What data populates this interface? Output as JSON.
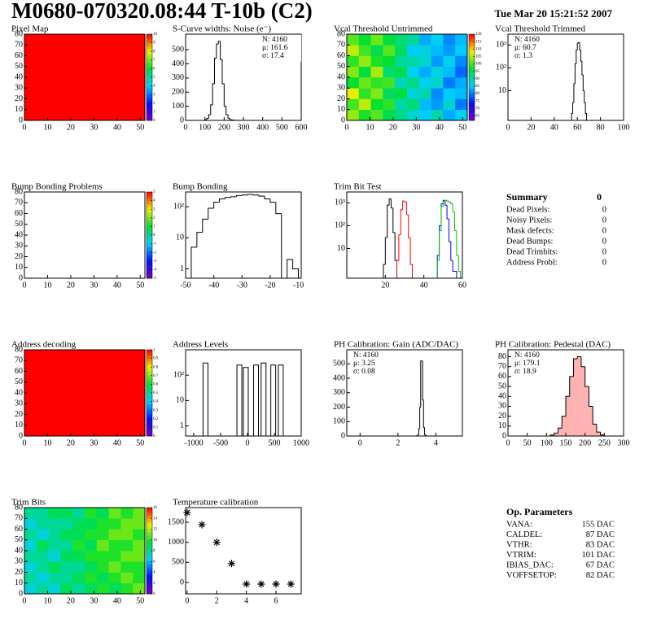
{
  "header": {
    "title": "M0680-070320.08:44 T-10b (C2)",
    "date": "Tue Mar 20 15:21:52 2007"
  },
  "chart_data": [
    {
      "type": "heatmap",
      "title": "Pixel Map",
      "xlim": [
        0,
        52
      ],
      "xticks": [
        0,
        10,
        20,
        30,
        40,
        50
      ],
      "ylim": [
        0,
        80
      ],
      "yticks": [
        0,
        10,
        20,
        30,
        40,
        50,
        60,
        70,
        80
      ],
      "zlim": [
        0,
        10
      ],
      "zticks": [
        0,
        1,
        2,
        3,
        4,
        5,
        6,
        7,
        8,
        9,
        10
      ],
      "z": [
        [
          10
        ]
      ]
    },
    {
      "type": "histogram",
      "title": "S-Curve widths: Noise (e⁻)",
      "xlim": [
        0,
        600
      ],
      "xticks": [
        0,
        100,
        200,
        300,
        400,
        500,
        600
      ],
      "ylim": [
        0,
        610
      ],
      "yticks": [
        0,
        100,
        200,
        300,
        400,
        500
      ],
      "log_y": false,
      "stats_position": "top-right",
      "stats": [
        {
          "text": "N: 4160",
          "color": "#000000"
        },
        {
          "text": "μ: 161.6",
          "color": "#000000"
        },
        {
          "text": "σ: 17.4",
          "color": "#000000"
        }
      ],
      "series": [
        {
          "color": "#000000",
          "bins": [
            100,
            110,
            120,
            130,
            140,
            150,
            160,
            170,
            180,
            190,
            200,
            210,
            220,
            230,
            240,
            250,
            260,
            270
          ],
          "counts": [
            5,
            15,
            40,
            110,
            260,
            440,
            540,
            560,
            430,
            260,
            100,
            40,
            15,
            5,
            3,
            1,
            1
          ]
        }
      ]
    },
    {
      "type": "heatmap",
      "title": "Vcal Threshold Untrimmed",
      "xlim": [
        0,
        52
      ],
      "xticks": [
        0,
        10,
        20,
        30,
        40,
        50
      ],
      "ylim": [
        0,
        80
      ],
      "yticks": [
        0,
        10,
        20,
        30,
        40,
        50,
        60,
        70,
        80
      ],
      "zlim": [
        62,
        120
      ],
      "zticks": [
        65,
        70,
        75,
        80,
        85,
        90,
        95,
        100,
        105,
        110,
        115,
        120
      ],
      "z": [
        [
          104,
          98,
          101,
          95,
          92,
          88,
          85,
          90,
          83,
          86
        ],
        [
          100,
          106,
          97,
          99,
          90,
          93,
          84,
          82,
          88,
          80
        ],
        [
          108,
          99,
          103,
          94,
          96,
          87,
          90,
          81,
          85,
          84
        ],
        [
          97,
          102,
          99,
          100,
          89,
          92,
          86,
          88,
          80,
          83
        ],
        [
          103,
          96,
          105,
          93,
          95,
          86,
          83,
          87,
          84,
          79
        ],
        [
          99,
          104,
          98,
          97,
          91,
          90,
          88,
          82,
          86,
          81
        ],
        [
          106,
          100,
          95,
          101,
          94,
          85,
          87,
          84,
          82,
          85
        ],
        [
          101,
          97,
          102,
          96,
          93,
          91,
          83,
          86,
          81,
          84
        ]
      ]
    },
    {
      "type": "histogram",
      "title": "Vcal Threshold Trimmed",
      "xlim": [
        0,
        100
      ],
      "xticks": [
        0,
        20,
        40,
        60,
        80,
        100
      ],
      "ylim": [
        0.5,
        3000
      ],
      "yticks": [
        10,
        {
          "value": 100,
          "label": "10²"
        },
        {
          "value": 1000,
          "label": "10³"
        }
      ],
      "log_y": true,
      "stats_position": "top-left",
      "stats": [
        {
          "text": "N: 4160",
          "color": "#000000"
        },
        {
          "text": "μ: 60.7",
          "color": "#000000"
        },
        {
          "text": "σ:  1.3",
          "color": "#000000"
        }
      ],
      "series": [
        {
          "color": "#000000",
          "bins": [
            55,
            56,
            57,
            58,
            59,
            60,
            61,
            62,
            63,
            64,
            65,
            66,
            67,
            68
          ],
          "counts": [
            1,
            3,
            20,
            150,
            600,
            1200,
            1300,
            600,
            200,
            50,
            10,
            3,
            1
          ]
        }
      ]
    },
    {
      "type": "heatmap",
      "title": "Bump Bonding Problems",
      "xlim": [
        0,
        52
      ],
      "xticks": [
        0,
        10,
        20,
        30,
        40,
        50
      ],
      "ylim": [
        0,
        80
      ],
      "yticks": [
        0,
        10,
        20,
        30,
        40,
        50,
        60,
        70,
        80
      ],
      "zlim": [
        -5,
        5
      ],
      "zticks": [
        -5,
        -4,
        -3,
        -2,
        -1,
        0,
        1,
        2,
        3,
        4,
        5
      ],
      "z": []
    },
    {
      "type": "histogram",
      "title": "Bump Bonding",
      "xlim": [
        -50,
        -9
      ],
      "xticks": [
        -50,
        -40,
        -30,
        -20,
        -10
      ],
      "ylim": [
        0.5,
        300
      ],
      "yticks": [
        1,
        10,
        {
          "value": 100,
          "label": "10²"
        }
      ],
      "log_y": true,
      "series": [
        {
          "color": "#000000",
          "bins": [
            -48,
            -46,
            -44,
            -42,
            -40,
            -38,
            -36,
            -34,
            -32,
            -30,
            -28,
            -26,
            -24,
            -22,
            -20,
            -18,
            -16,
            -14,
            -12,
            -10
          ],
          "counts": [
            5,
            15,
            40,
            90,
            140,
            180,
            200,
            210,
            230,
            240,
            250,
            240,
            220,
            180,
            140,
            60,
            0,
            2,
            1
          ]
        }
      ]
    },
    {
      "type": "histogram",
      "title": "Trim Bit Test",
      "xlim": [
        0,
        60
      ],
      "xticks": [
        20,
        40,
        60
      ],
      "ylim": [
        0.5,
        3000
      ],
      "yticks": [
        10,
        {
          "value": 100,
          "label": "10²"
        },
        {
          "value": 1000,
          "label": "10³"
        }
      ],
      "log_y": true,
      "series": [
        {
          "color": "#000000",
          "bins": [
            19,
            20,
            21,
            22,
            23,
            24,
            25,
            26
          ],
          "counts": [
            2,
            30,
            800,
            1500,
            600,
            50,
            3
          ]
        },
        {
          "color": "#ff0000",
          "bins": [
            26,
            27,
            28,
            29,
            30,
            31,
            32,
            33,
            34
          ],
          "counts": [
            3,
            40,
            500,
            1200,
            1100,
            300,
            30,
            2
          ]
        },
        {
          "color": "#0000ff",
          "bins": [
            47,
            48,
            49,
            50,
            51,
            52,
            53,
            54,
            55,
            56,
            57
          ],
          "counts": [
            5,
            100,
            900,
            1300,
            800,
            200,
            20,
            3,
            1,
            1
          ]
        },
        {
          "color": "#00c000",
          "bins": [
            47,
            48,
            49,
            50,
            51,
            52,
            53,
            54,
            55,
            56,
            57,
            58,
            59
          ],
          "counts": [
            3,
            60,
            700,
            1200,
            1300,
            1200,
            1100,
            900,
            400,
            60,
            5,
            1
          ]
        }
      ]
    },
    {
      "type": "heatmap",
      "title": "Address decoding",
      "xlim": [
        0,
        52
      ],
      "xticks": [
        0,
        10,
        20,
        30,
        40,
        50
      ],
      "ylim": [
        0,
        80
      ],
      "yticks": [
        0,
        10,
        20,
        30,
        40,
        50,
        60,
        70,
        80
      ],
      "zlim": [
        0,
        1
      ],
      "zticks": [
        0,
        0.1,
        0.2,
        0.3,
        0.4,
        0.5,
        0.6,
        0.7,
        0.8,
        0.9,
        1
      ],
      "z": [
        [
          1
        ]
      ]
    },
    {
      "type": "spikes",
      "title": "Address Levels",
      "xlim": [
        -1150,
        1000
      ],
      "xticks": [
        -1000,
        -500,
        0,
        500,
        1000
      ],
      "ylim": [
        0.4,
        1000
      ],
      "yticks": [
        1,
        10,
        {
          "value": 100,
          "label": "10²"
        }
      ],
      "log_y": true,
      "series": [
        {
          "color": "#000000",
          "x": [
            -780,
            -150,
            -30,
            160,
            300,
            480,
            620
          ],
          "values": [
            300,
            250,
            200,
            250,
            300,
            250,
            250
          ]
        }
      ]
    },
    {
      "type": "histogram",
      "title": "PH Calibration: Gain (ADC/DAC)",
      "xlim": [
        -0.7,
        5.4
      ],
      "xticks": [
        0,
        2,
        4
      ],
      "ylim": [
        0,
        597
      ],
      "yticks": [
        0,
        100,
        200,
        300,
        400,
        500
      ],
      "log_y": false,
      "stats_position": "top-left",
      "stats": [
        {
          "text": "N: 4160",
          "color": "#000000"
        },
        {
          "text": "μ: 3.25",
          "color": "#000000"
        },
        {
          "text": "σ: 0.08",
          "color": "#000000"
        }
      ],
      "series": [
        {
          "color": "#000000",
          "bins": [
            3.0,
            3.05,
            3.1,
            3.15,
            3.2,
            3.25,
            3.3,
            3.35,
            3.4,
            3.45,
            3.5
          ],
          "counts": [
            2,
            10,
            50,
            200,
            520,
            520,
            250,
            60,
            10,
            2
          ]
        }
      ]
    },
    {
      "type": "histogram",
      "title": "PH Calibration: Pedestal (DAC)",
      "xlim": [
        0,
        300
      ],
      "xticks": [
        0,
        50,
        100,
        150,
        200,
        250,
        300
      ],
      "ylim": [
        0,
        87
      ],
      "yticks": [
        0,
        10,
        20,
        30,
        40,
        50,
        60,
        70,
        80
      ],
      "log_y": false,
      "stats_position": "top-left",
      "stats": [
        {
          "text": "N: 4160",
          "color": "#000000"
        },
        {
          "text": "μ: 179.1",
          "color": "#ff0000"
        },
        {
          "text": "σ: 18.9",
          "color": "#ff0000"
        }
      ],
      "series": [
        {
          "color": "#000000",
          "fill": "#ff0000",
          "bins": [
            110,
            120,
            130,
            140,
            150,
            160,
            170,
            180,
            190,
            200,
            210,
            220,
            230,
            240,
            250
          ],
          "counts": [
            1,
            3,
            8,
            20,
            40,
            60,
            78,
            80,
            70,
            50,
            30,
            12,
            4,
            1
          ]
        }
      ]
    },
    {
      "type": "heatmap",
      "title": "Trim Bits",
      "xlim": [
        0,
        52
      ],
      "xticks": [
        0,
        10,
        20,
        30,
        40,
        50
      ],
      "ylim": [
        0,
        80
      ],
      "yticks": [
        0,
        10,
        20,
        30,
        40,
        50,
        60,
        70,
        80
      ],
      "zlim": [
        0,
        16
      ],
      "zticks": [
        0,
        2,
        4,
        6,
        8,
        10,
        12,
        14,
        16
      ],
      "z": [
        [
          7,
          8,
          7,
          9,
          8,
          9,
          10,
          9,
          10,
          11
        ],
        [
          8,
          7,
          8,
          8,
          9,
          10,
          9,
          10,
          11,
          10
        ],
        [
          7,
          8,
          9,
          8,
          8,
          9,
          10,
          11,
          10,
          10
        ],
        [
          8,
          8,
          7,
          9,
          9,
          10,
          10,
          10,
          11,
          11
        ],
        [
          7,
          9,
          8,
          8,
          10,
          9,
          11,
          10,
          10,
          11
        ],
        [
          8,
          7,
          8,
          9,
          9,
          10,
          10,
          11,
          11,
          10
        ],
        [
          7,
          8,
          8,
          8,
          9,
          9,
          10,
          10,
          11,
          11
        ],
        [
          8,
          8,
          9,
          9,
          8,
          10,
          9,
          11,
          10,
          11
        ]
      ]
    },
    {
      "type": "scatter",
      "title": "Temperature calibration",
      "xlim": [
        -0.1,
        7.7
      ],
      "xticks": [
        0,
        2,
        4,
        6
      ],
      "ylim": [
        -284,
        1865
      ],
      "yticks": [
        0,
        500,
        1000,
        1500
      ],
      "color": "#000000",
      "x": [
        0,
        1,
        2,
        3,
        4,
        5,
        6,
        7
      ],
      "values": [
        1740,
        1440,
        1000,
        470,
        -40,
        -40,
        -40,
        -40
      ]
    }
  ],
  "summary": {
    "title": "Summary",
    "value": 0,
    "rows": [
      [
        "Dead Pixels:",
        0
      ],
      [
        "Noisy Pixels:",
        0
      ],
      [
        "Mask defects:",
        0
      ],
      [
        "Dead Bumps:",
        0
      ],
      [
        "Dead Trimbits:",
        0
      ],
      [
        "Address Probl:",
        0
      ]
    ]
  },
  "op_parameters": {
    "title": "Op. Parameters",
    "rows": [
      [
        "VANA:",
        "155 DAC"
      ],
      [
        "CALDEL:",
        "87 DAC"
      ],
      [
        "VTHR:",
        "83 DAC"
      ],
      [
        "VTRIM:",
        "101 DAC"
      ],
      [
        "IBIAS_DAC:",
        "67 DAC"
      ],
      [
        "VOFFSETOP:",
        "82 DAC"
      ]
    ]
  }
}
